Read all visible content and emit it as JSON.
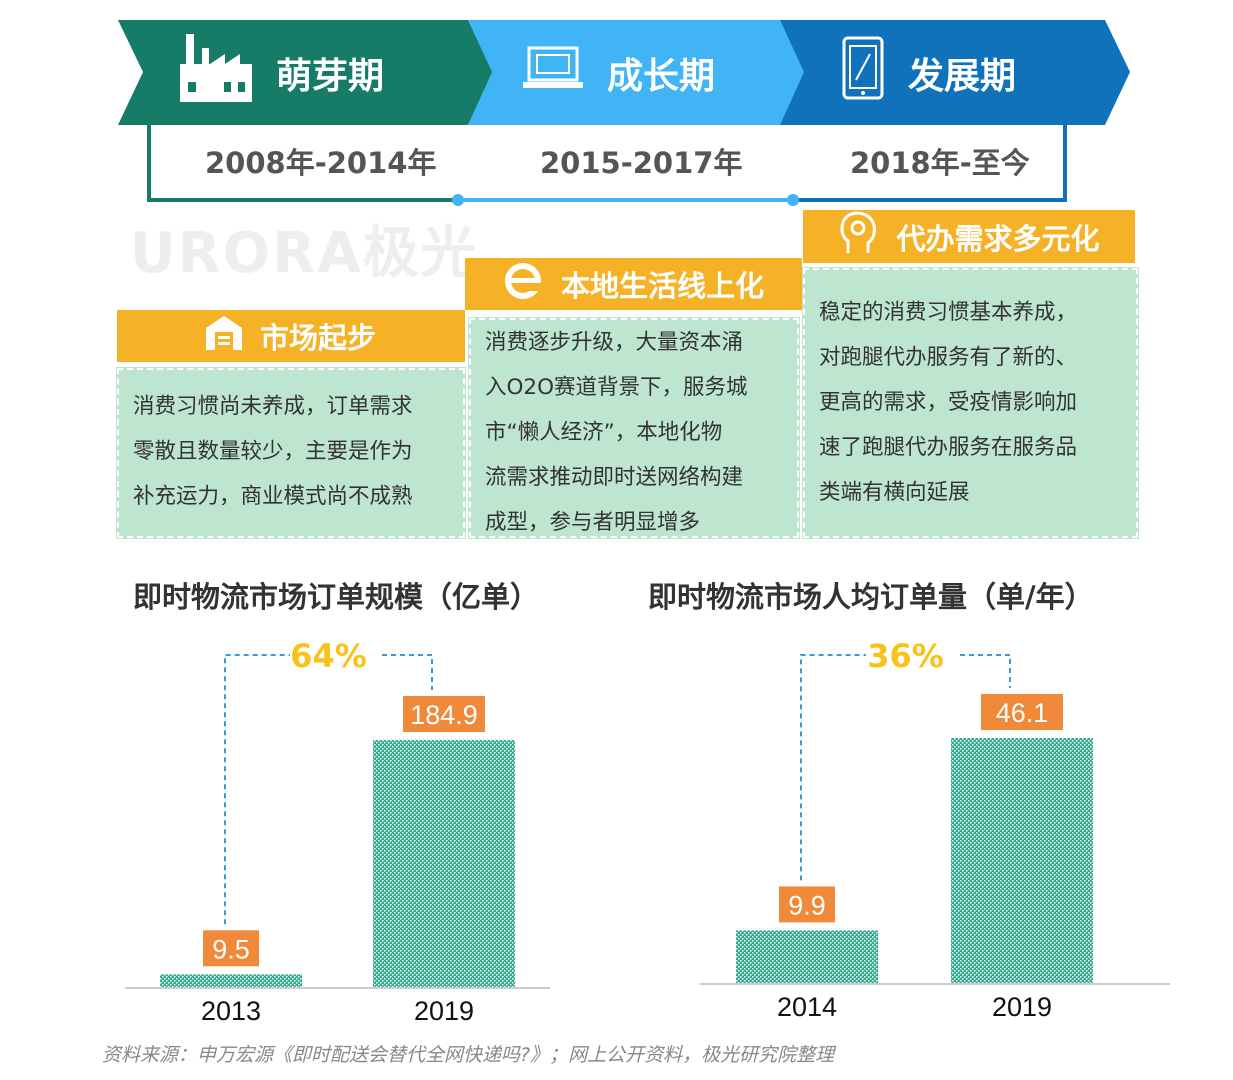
{
  "stages": [
    {
      "label": "萌芽期",
      "period": "2008年-2014年",
      "icon": "factory-icon",
      "color": "#167c68"
    },
    {
      "label": "成长期",
      "period": "2015-2017年",
      "icon": "laptop-icon",
      "color": "#40b4f5"
    },
    {
      "label": "发展期",
      "period": "2018年-至今",
      "icon": "smartphone-icon",
      "color": "#0f72bb"
    }
  ],
  "watermark": "URORA极光",
  "cards": [
    {
      "title": "市场起步",
      "icon": "warehouse-icon",
      "text": [
        "消费习惯尚未养成，订单需求",
        "零散且数量较少，主要是作为",
        "补充运力，商业模式尚不成熟"
      ]
    },
    {
      "title": "本地生活线上化",
      "icon": "internet-explorer-icon",
      "text": [
        "消费逐步升级，大量资本涌",
        "入O2O赛道背景下，服务城",
        "市“懒人经济”，本地化物",
        "流需求推动即时送网络构建",
        "成型，参与者明显增多"
      ]
    },
    {
      "title": "代办需求多元化",
      "icon": "head-gears-icon",
      "text": [
        "稳定的消费习惯基本养成，",
        "对跑腿代办服务有了新的、",
        "更高的需求，受疫情影响加",
        "速了跑腿代办服务在服务品",
        "类端有横向延展"
      ]
    }
  ],
  "colors": {
    "accent": "#f6b227",
    "label_box": "#f08a3a",
    "bar": "#2fae8c",
    "card_bg": "#bde5cf",
    "growth": "#f9c21a",
    "connector": "#3a9ad9"
  },
  "chart_data": [
    {
      "type": "bar",
      "title": "即时物流市场订单规模（亿单）",
      "categories": [
        "2013",
        "2019"
      ],
      "values": [
        9.5,
        184.9
      ],
      "growth": "64%",
      "ylim": [
        0,
        200
      ]
    },
    {
      "type": "bar",
      "title": "即时物流市场人均订单量（单/年）",
      "categories": [
        "2014",
        "2019"
      ],
      "values": [
        9.9,
        46.1
      ],
      "growth": "36%",
      "ylim": [
        0,
        50
      ]
    }
  ],
  "source": "资料来源：申万宏源《即时配送会替代全网快递吗?》；网上公开资料，极光研究院整理"
}
